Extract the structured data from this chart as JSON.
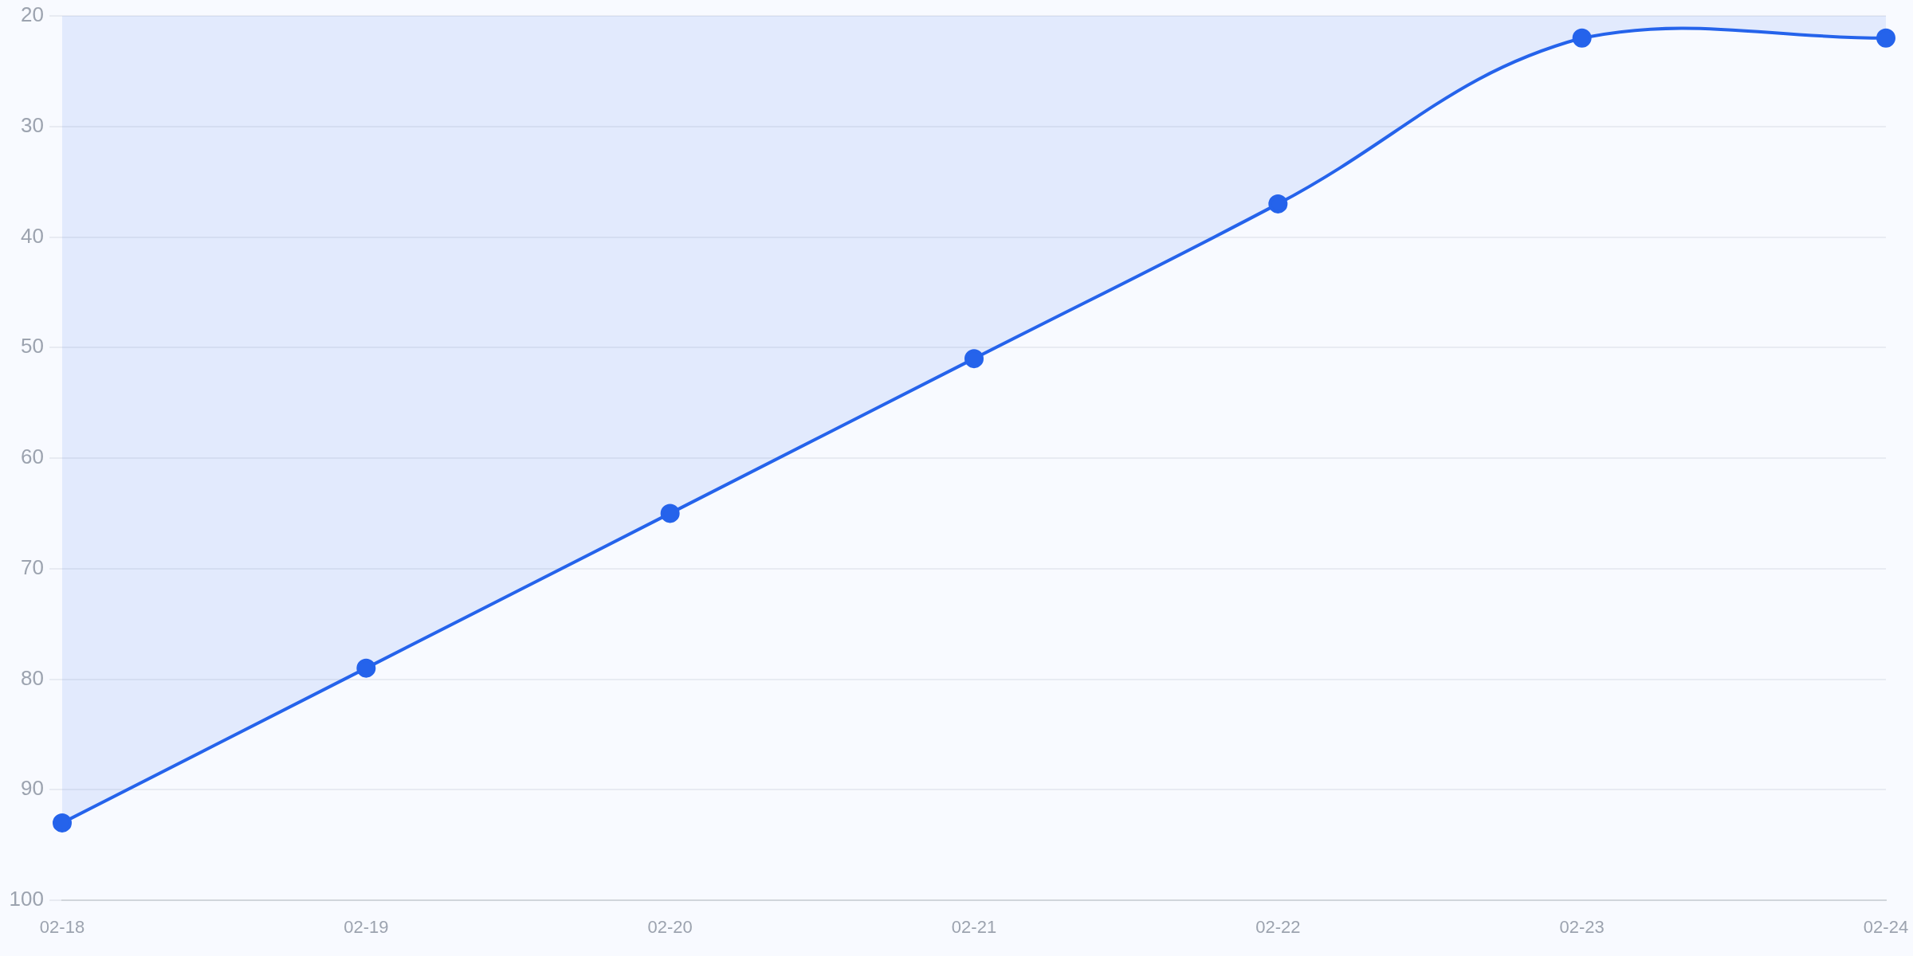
{
  "chart_data": {
    "type": "area",
    "categories": [
      "02-18",
      "02-19",
      "02-20",
      "02-21",
      "02-22",
      "02-23",
      "02-24"
    ],
    "series": [
      {
        "color": "#2563eb",
        "values": [
          93,
          79,
          65,
          51,
          37,
          22,
          22
        ]
      }
    ],
    "ylim": [
      100,
      20
    ],
    "yticks": [
      20,
      30,
      40,
      50,
      60,
      70,
      80,
      90,
      100
    ],
    "grid": "y",
    "marker": "circle"
  }
}
